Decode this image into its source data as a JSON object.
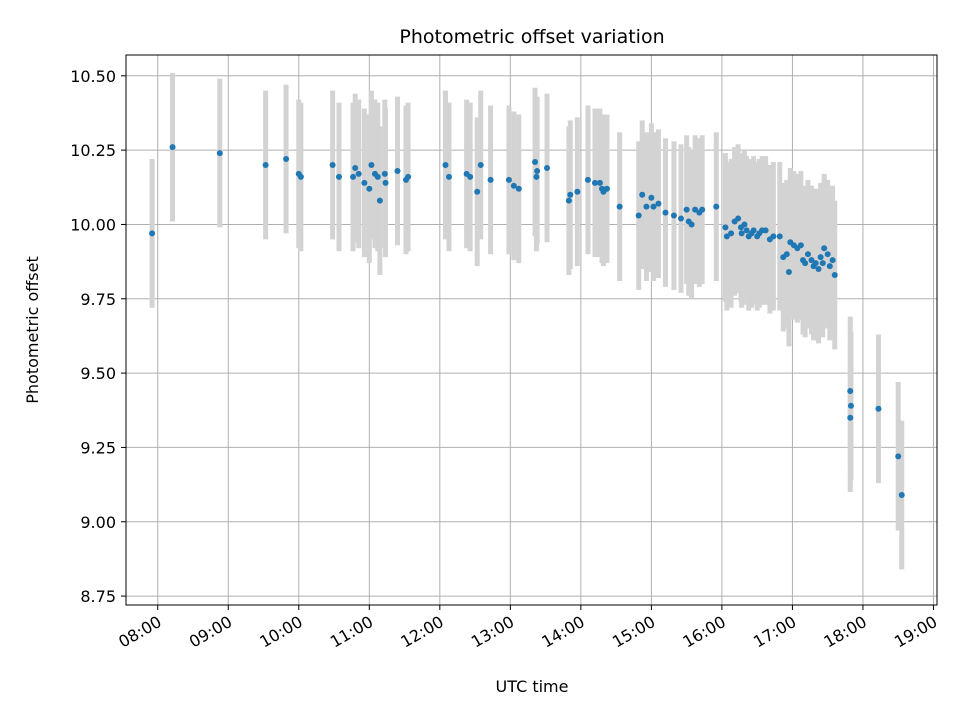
{
  "chart_data": {
    "type": "scatter",
    "title": "Photometric offset variation",
    "xlabel": "UTC time",
    "ylabel": "Photometric offset",
    "x_unit": "hours UTC",
    "xlim": [
      7.55,
      19.05
    ],
    "ylim": [
      8.72,
      10.57
    ],
    "x_ticks": [
      8,
      9,
      10,
      11,
      12,
      13,
      14,
      15,
      16,
      17,
      18,
      19
    ],
    "x_tick_labels": [
      "08:00",
      "09:00",
      "10:00",
      "11:00",
      "12:00",
      "13:00",
      "14:00",
      "15:00",
      "16:00",
      "17:00",
      "18:00",
      "19:00"
    ],
    "y_ticks": [
      8.75,
      9.0,
      9.25,
      9.5,
      9.75,
      10.0,
      10.25,
      10.5
    ],
    "y_tick_labels": [
      "8.75",
      "9.00",
      "9.25",
      "9.50",
      "9.75",
      "10.00",
      "10.25",
      "10.50"
    ],
    "grid": true,
    "colors": {
      "points": "#1f77b4",
      "error_bars": "#d3d3d3",
      "grid": "#b0b0b0"
    },
    "series": [
      {
        "error_bar": 0.25,
        "points": [
          {
            "x": 7.92,
            "y": 9.97
          },
          {
            "x": 8.21,
            "y": 10.26
          },
          {
            "x": 8.88,
            "y": 10.24
          },
          {
            "x": 9.53,
            "y": 10.2
          },
          {
            "x": 9.82,
            "y": 10.22
          },
          {
            "x": 10.0,
            "y": 10.17
          },
          {
            "x": 10.03,
            "y": 10.16
          },
          {
            "x": 10.48,
            "y": 10.2
          },
          {
            "x": 10.57,
            "y": 10.16
          },
          {
            "x": 10.77,
            "y": 10.16
          },
          {
            "x": 10.8,
            "y": 10.19
          },
          {
            "x": 10.85,
            "y": 10.17
          },
          {
            "x": 10.93,
            "y": 10.14
          },
          {
            "x": 11.0,
            "y": 10.12
          },
          {
            "x": 11.03,
            "y": 10.2
          },
          {
            "x": 11.08,
            "y": 10.17
          },
          {
            "x": 11.12,
            "y": 10.16
          },
          {
            "x": 11.15,
            "y": 10.08
          },
          {
            "x": 11.22,
            "y": 10.17
          },
          {
            "x": 11.23,
            "y": 10.14
          },
          {
            "x": 11.4,
            "y": 10.18
          },
          {
            "x": 11.52,
            "y": 10.15
          },
          {
            "x": 11.55,
            "y": 10.16
          },
          {
            "x": 12.08,
            "y": 10.2
          },
          {
            "x": 12.13,
            "y": 10.16
          },
          {
            "x": 12.38,
            "y": 10.17
          },
          {
            "x": 12.43,
            "y": 10.16
          },
          {
            "x": 12.53,
            "y": 10.11
          },
          {
            "x": 12.58,
            "y": 10.2
          },
          {
            "x": 12.72,
            "y": 10.15
          },
          {
            "x": 12.98,
            "y": 10.15
          },
          {
            "x": 13.05,
            "y": 10.13
          },
          {
            "x": 13.12,
            "y": 10.12
          },
          {
            "x": 13.35,
            "y": 10.21
          },
          {
            "x": 13.38,
            "y": 10.18
          },
          {
            "x": 13.37,
            "y": 10.16
          },
          {
            "x": 13.52,
            "y": 10.19
          },
          {
            "x": 13.83,
            "y": 10.08
          },
          {
            "x": 13.85,
            "y": 10.1
          },
          {
            "x": 13.95,
            "y": 10.11
          },
          {
            "x": 14.1,
            "y": 10.15
          },
          {
            "x": 14.2,
            "y": 10.14
          },
          {
            "x": 14.27,
            "y": 10.14
          },
          {
            "x": 14.3,
            "y": 10.12
          },
          {
            "x": 14.32,
            "y": 10.11
          },
          {
            "x": 14.37,
            "y": 10.12
          },
          {
            "x": 14.55,
            "y": 10.06
          },
          {
            "x": 14.82,
            "y": 10.03
          },
          {
            "x": 14.87,
            "y": 10.1
          },
          {
            "x": 14.93,
            "y": 10.06
          },
          {
            "x": 15.0,
            "y": 10.09
          },
          {
            "x": 15.03,
            "y": 10.06
          },
          {
            "x": 15.1,
            "y": 10.07
          },
          {
            "x": 15.2,
            "y": 10.04
          },
          {
            "x": 15.32,
            "y": 10.03
          },
          {
            "x": 15.42,
            "y": 10.02
          },
          {
            "x": 15.5,
            "y": 10.05
          },
          {
            "x": 15.53,
            "y": 10.01
          },
          {
            "x": 15.57,
            "y": 10.0
          },
          {
            "x": 15.62,
            "y": 10.05
          },
          {
            "x": 15.68,
            "y": 10.04
          },
          {
            "x": 15.72,
            "y": 10.05
          },
          {
            "x": 15.92,
            "y": 10.06
          },
          {
            "x": 16.05,
            "y": 9.99
          },
          {
            "x": 16.07,
            "y": 9.96
          },
          {
            "x": 16.13,
            "y": 9.97
          },
          {
            "x": 16.18,
            "y": 10.01
          },
          {
            "x": 16.23,
            "y": 10.02
          },
          {
            "x": 16.27,
            "y": 9.99
          },
          {
            "x": 16.28,
            "y": 9.97
          },
          {
            "x": 16.32,
            "y": 10.0
          },
          {
            "x": 16.35,
            "y": 9.98
          },
          {
            "x": 16.38,
            "y": 9.96
          },
          {
            "x": 16.42,
            "y": 9.97
          },
          {
            "x": 16.45,
            "y": 9.98
          },
          {
            "x": 16.5,
            "y": 9.96
          },
          {
            "x": 16.53,
            "y": 9.97
          },
          {
            "x": 16.57,
            "y": 9.98
          },
          {
            "x": 16.62,
            "y": 9.98
          },
          {
            "x": 16.68,
            "y": 9.95
          },
          {
            "x": 16.73,
            "y": 9.96
          },
          {
            "x": 16.82,
            "y": 9.96
          },
          {
            "x": 16.87,
            "y": 9.89
          },
          {
            "x": 16.92,
            "y": 9.9
          },
          {
            "x": 16.95,
            "y": 9.84
          },
          {
            "x": 16.97,
            "y": 9.94
          },
          {
            "x": 17.02,
            "y": 9.93
          },
          {
            "x": 17.07,
            "y": 9.92
          },
          {
            "x": 17.12,
            "y": 9.93
          },
          {
            "x": 17.15,
            "y": 9.88
          },
          {
            "x": 17.18,
            "y": 9.87
          },
          {
            "x": 17.22,
            "y": 9.9
          },
          {
            "x": 17.27,
            "y": 9.88
          },
          {
            "x": 17.3,
            "y": 9.86
          },
          {
            "x": 17.33,
            "y": 9.87
          },
          {
            "x": 17.37,
            "y": 9.85
          },
          {
            "x": 17.4,
            "y": 9.89
          },
          {
            "x": 17.43,
            "y": 9.87
          },
          {
            "x": 17.45,
            "y": 9.92
          },
          {
            "x": 17.5,
            "y": 9.9
          },
          {
            "x": 17.53,
            "y": 9.86
          },
          {
            "x": 17.57,
            "y": 9.88
          },
          {
            "x": 17.6,
            "y": 9.83
          },
          {
            "x": 17.82,
            "y": 9.44
          },
          {
            "x": 17.83,
            "y": 9.39
          },
          {
            "x": 17.82,
            "y": 9.35
          },
          {
            "x": 18.22,
            "y": 9.38
          },
          {
            "x": 18.5,
            "y": 9.22
          },
          {
            "x": 18.55,
            "y": 9.09
          }
        ]
      }
    ]
  }
}
